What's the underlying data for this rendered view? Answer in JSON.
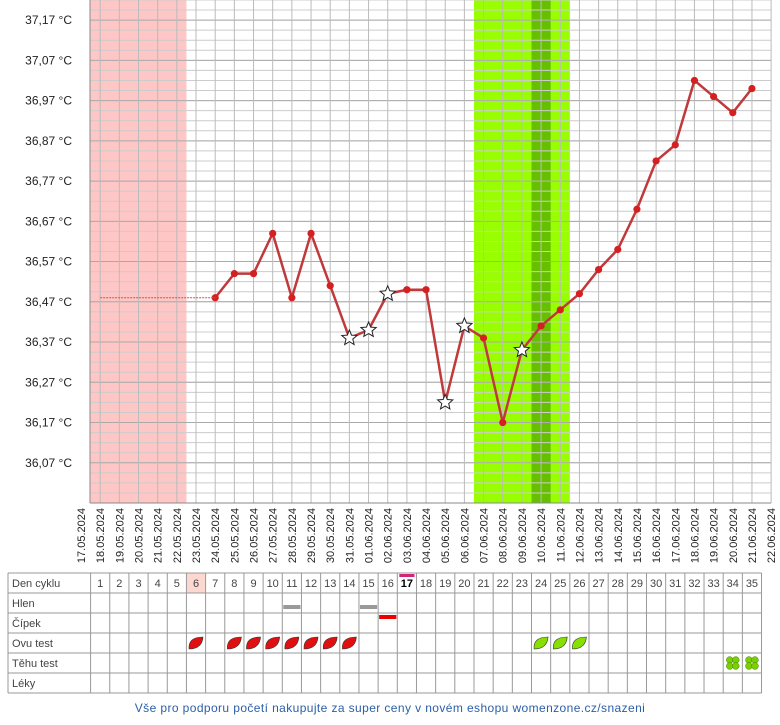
{
  "chart_data": {
    "type": "line",
    "x": [
      "17.05.2024",
      "18.05.2024",
      "19.05.2024",
      "20.05.2024",
      "21.05.2024",
      "22.05.2024",
      "23.05.2024",
      "24.05.2024",
      "25.05.2024",
      "26.05.2024",
      "27.05.2024",
      "28.05.2024",
      "29.05.2024",
      "30.05.2024",
      "31.05.2024",
      "01.06.2024",
      "02.06.2024",
      "03.06.2024",
      "04.06.2024",
      "05.06.2024",
      "06.06.2024",
      "07.06.2024",
      "08.06.2024",
      "09.06.2024",
      "10.06.2024",
      "11.06.2024",
      "12.06.2024",
      "13.06.2024",
      "14.06.2024",
      "15.06.2024",
      "16.06.2024",
      "17.06.2024",
      "18.06.2024",
      "19.06.2024",
      "20.06.2024",
      "21.06.2024",
      "22.06.2024"
    ],
    "series": [
      {
        "color": "#c0393b",
        "values": [
          null,
          null,
          null,
          null,
          null,
          null,
          null,
          36.48,
          36.54,
          36.54,
          36.64,
          36.48,
          36.64,
          36.51,
          36.38,
          36.4,
          36.49,
          36.5,
          36.5,
          36.22,
          36.41,
          36.38,
          36.17,
          36.35,
          36.41,
          36.45,
          36.49,
          36.55,
          36.6,
          36.7,
          36.82,
          36.86,
          37.02,
          36.98,
          36.94,
          37.0,
          null
        ],
        "markers": [
          null,
          null,
          null,
          null,
          null,
          null,
          null,
          "dot",
          "dot",
          "dot",
          "dot",
          "dot",
          "dot",
          "dot",
          "star",
          "star",
          "star",
          "dot",
          "dot",
          "star",
          "star",
          "dot",
          "dot",
          "star",
          "dot",
          "dot",
          "dot",
          "dot",
          "dot",
          "dot",
          "dot",
          "dot",
          "dot",
          "dot",
          "dot",
          "dot",
          null
        ]
      },
      {
        "color": "#d05050",
        "style": "dotted",
        "values": [
          null,
          36.48,
          36.48,
          36.48,
          36.48,
          36.48,
          36.48,
          36.48,
          null,
          null,
          null,
          null,
          null,
          null,
          null,
          null,
          null,
          null,
          null,
          null,
          null,
          null,
          null,
          null,
          null,
          null,
          null,
          null,
          null,
          null,
          null,
          null,
          null,
          null,
          null,
          null,
          null
        ]
      }
    ],
    "ylim": [
      35.97,
      37.22
    ],
    "yticks": [
      {
        "value": 36.07,
        "label": "36,07 °C"
      },
      {
        "value": 36.17,
        "label": "36,17 °C"
      },
      {
        "value": 36.27,
        "label": "36,27 °C"
      },
      {
        "value": 36.37,
        "label": "36,37 °C"
      },
      {
        "value": 36.47,
        "label": "36,47 °C"
      },
      {
        "value": 36.57,
        "label": "36,57 °C"
      },
      {
        "value": 36.67,
        "label": "36,67 °C"
      },
      {
        "value": 36.77,
        "label": "36,77 °C"
      },
      {
        "value": 36.87,
        "label": "36,87 °C"
      },
      {
        "value": 36.97,
        "label": "36,97 °C"
      },
      {
        "value": 37.07,
        "label": "37,07 °C"
      },
      {
        "value": 37.17,
        "label": "37,17 °C"
      }
    ],
    "grid": true,
    "bands": [
      {
        "from": 1,
        "to": 5,
        "color": "#ffc6c6"
      },
      {
        "from": 21,
        "to": 25,
        "color": "#99ff00"
      },
      {
        "from": 24,
        "to": 24,
        "color": "#66c000"
      }
    ]
  },
  "table": {
    "row_labels": [
      "Den cyklu",
      "Hlen",
      "Čípek",
      "Ovu test",
      "Těhu test",
      "Léky"
    ],
    "cycle_days": [
      1,
      2,
      3,
      4,
      5,
      6,
      7,
      8,
      9,
      10,
      11,
      12,
      13,
      14,
      15,
      16,
      17,
      18,
      19,
      20,
      21,
      22,
      23,
      24,
      25,
      26,
      27,
      28,
      29,
      30,
      31,
      32,
      33,
      34,
      35
    ],
    "highlight_day": 6,
    "today": 17,
    "hlen": [
      11,
      15
    ],
    "cipek": [
      16
    ],
    "ovu_red": [
      6,
      8,
      9,
      10,
      11,
      12,
      13,
      14
    ],
    "ovu_green": [
      24,
      25,
      26
    ],
    "tehu": [
      34,
      35
    ]
  },
  "footer": "Vše pro podporu početí nakupujte za super ceny v novém eshopu womenzone.cz/snazeni"
}
